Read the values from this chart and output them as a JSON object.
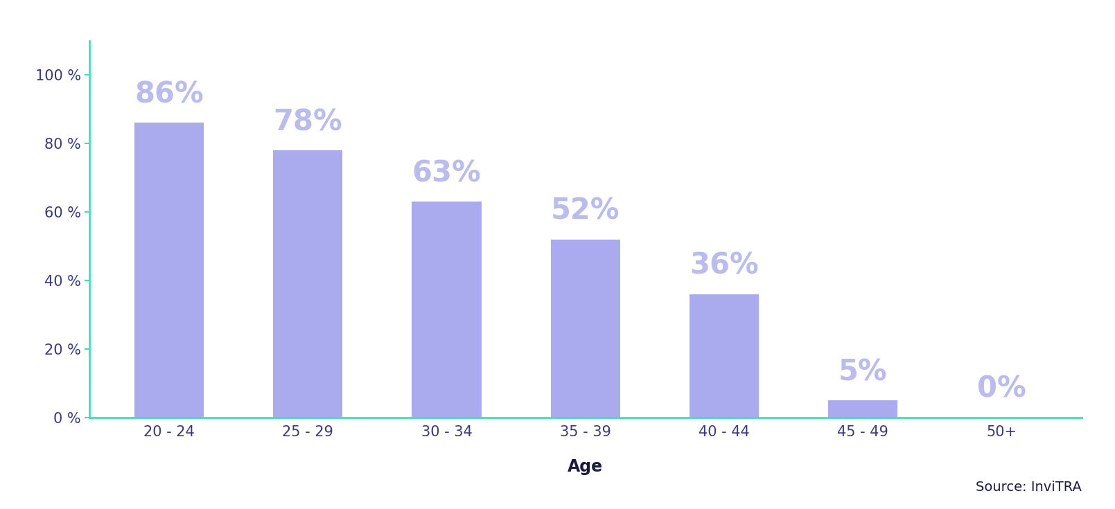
{
  "categories": [
    "20 - 24",
    "25 - 29",
    "30 - 34",
    "35 - 39",
    "40 - 44",
    "45 - 49",
    "50+"
  ],
  "values": [
    86,
    78,
    63,
    52,
    36,
    5,
    0
  ],
  "bar_color": "#aaaaee",
  "axis_color": "#44ddbb",
  "tick_color": "#3a3a7a",
  "label_color": "#bbbbee",
  "ytick_labels": [
    "0 %",
    "20 %",
    "40 %",
    "60 %",
    "80 %",
    "100 %"
  ],
  "ytick_values": [
    0,
    20,
    40,
    60,
    80,
    100
  ],
  "xlabel": "Age",
  "source_text": "Source: InviTRA",
  "xlabel_fontsize": 17,
  "label_fontsize": 30,
  "tick_fontsize": 15,
  "source_fontsize": 14,
  "background_color": "#ffffff"
}
